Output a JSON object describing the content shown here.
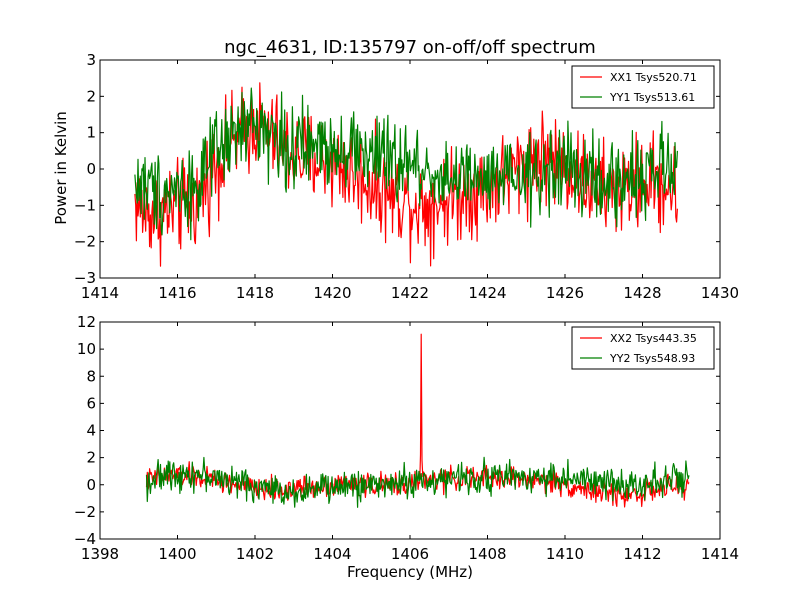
{
  "chart_data": [
    {
      "type": "line",
      "title": "ngc_4631, ID:135797 on-off/off spectrum",
      "xlabel": "",
      "ylabel": "Power in Kelvin",
      "xlim": [
        1414,
        1430
      ],
      "ylim": [
        -3,
        3
      ],
      "xticks": [
        "1414",
        "1416",
        "1418",
        "1420",
        "1422",
        "1424",
        "1426",
        "1428",
        "1430"
      ],
      "yticks": [
        "−3",
        "−2",
        "−1",
        "0",
        "1",
        "2",
        "3"
      ],
      "grid": false,
      "legend_position": "top-right",
      "x_range": [
        1414.9,
        1428.9
      ],
      "series": [
        {
          "name": "XX1 Tsys520.71",
          "color": "#ff0000",
          "x": [
            1414.9,
            1415.2,
            1415.6,
            1416.0,
            1416.5,
            1417.0,
            1417.5,
            1418.0,
            1418.5,
            1419.0,
            1419.5,
            1420.0,
            1420.5,
            1421.0,
            1421.5,
            1422.0,
            1422.5,
            1423.0,
            1423.5,
            1424.0,
            1424.5,
            1425.0,
            1425.5,
            1426.0,
            1426.5,
            1427.0,
            1427.5,
            1428.0,
            1428.5,
            1428.9
          ],
          "values": [
            -0.9,
            -1.2,
            -1.2,
            -1.1,
            -0.9,
            0.2,
            0.8,
            1.3,
            0.8,
            0.4,
            0.3,
            0.2,
            -0.1,
            -0.4,
            -0.7,
            -0.9,
            -1.0,
            -0.8,
            -0.6,
            -0.5,
            -0.2,
            0.2,
            0.4,
            0.1,
            -0.3,
            -0.6,
            -0.6,
            -0.3,
            -0.4,
            -0.7
          ],
          "noise_amplitude": 0.9
        },
        {
          "name": "YY1 Tsys513.61",
          "color": "#008000",
          "x": [
            1414.9,
            1415.2,
            1415.6,
            1416.0,
            1416.5,
            1417.0,
            1417.5,
            1418.0,
            1418.5,
            1419.0,
            1419.5,
            1420.0,
            1420.5,
            1421.0,
            1421.5,
            1422.0,
            1422.5,
            1423.0,
            1423.5,
            1424.0,
            1424.5,
            1425.0,
            1425.5,
            1426.0,
            1426.5,
            1427.0,
            1427.5,
            1428.0,
            1428.5,
            1428.9
          ],
          "values": [
            -0.4,
            -0.5,
            -0.6,
            -0.5,
            -0.5,
            0.4,
            0.9,
            1.3,
            0.9,
            0.5,
            0.6,
            0.7,
            0.6,
            0.4,
            0.2,
            0.1,
            -0.1,
            -0.2,
            -0.3,
            -0.4,
            -0.3,
            -0.3,
            -0.1,
            0.1,
            -0.2,
            -0.5,
            -0.3,
            -0.1,
            0.0,
            -0.2
          ],
          "noise_amplitude": 0.8
        }
      ]
    },
    {
      "type": "line",
      "title": "",
      "xlabel": "Frequency (MHz)",
      "ylabel": "",
      "xlim": [
        1398,
        1414
      ],
      "ylim": [
        -4,
        12
      ],
      "xticks": [
        "1398",
        "1400",
        "1402",
        "1404",
        "1406",
        "1408",
        "1410",
        "1412",
        "1414"
      ],
      "yticks": [
        "−4",
        "−2",
        "0",
        "2",
        "4",
        "6",
        "8",
        "10",
        "12"
      ],
      "grid": false,
      "legend_position": "top-right",
      "x_range": [
        1399.2,
        1413.2
      ],
      "series": [
        {
          "name": "XX2 Tsys443.35",
          "color": "#ff0000",
          "x": [
            1399.2,
            1399.6,
            1400.0,
            1400.5,
            1401.0,
            1401.5,
            1402.0,
            1402.5,
            1403.0,
            1403.5,
            1404.0,
            1404.5,
            1405.0,
            1405.5,
            1406.0,
            1406.5,
            1407.0,
            1407.5,
            1408.0,
            1408.5,
            1409.0,
            1409.5,
            1410.0,
            1410.5,
            1411.0,
            1411.5,
            1412.0,
            1412.5,
            1413.2
          ],
          "values": [
            0.3,
            0.6,
            0.7,
            0.6,
            0.3,
            0.0,
            -0.3,
            -0.4,
            -0.3,
            -0.1,
            0.0,
            0.1,
            0.0,
            0.0,
            0.1,
            0.3,
            0.4,
            0.5,
            0.5,
            0.5,
            0.4,
            0.3,
            0.0,
            -0.3,
            -0.6,
            -0.8,
            -0.6,
            -0.3,
            -0.1
          ],
          "noise_amplitude": 0.6,
          "peak": {
            "x": 1406.3,
            "value": 11.1
          }
        },
        {
          "name": "YY2 Tsys548.93",
          "color": "#008000",
          "x": [
            1399.2,
            1399.6,
            1400.0,
            1400.5,
            1401.0,
            1401.5,
            1402.0,
            1402.5,
            1403.0,
            1403.5,
            1404.0,
            1404.5,
            1405.0,
            1405.5,
            1406.0,
            1406.5,
            1407.0,
            1407.5,
            1408.0,
            1408.5,
            1409.0,
            1409.5,
            1410.0,
            1410.5,
            1411.0,
            1411.5,
            1412.0,
            1412.5,
            1413.2
          ],
          "values": [
            0.2,
            0.6,
            0.9,
            0.8,
            0.5,
            0.2,
            -0.1,
            -0.4,
            -0.5,
            -0.3,
            -0.2,
            -0.1,
            0.0,
            0.1,
            0.2,
            0.3,
            0.4,
            0.5,
            0.6,
            0.6,
            0.6,
            0.6,
            0.5,
            0.3,
            0.1,
            0.0,
            0.2,
            0.4,
            0.4
          ],
          "noise_amplitude": 0.8
        }
      ]
    }
  ]
}
